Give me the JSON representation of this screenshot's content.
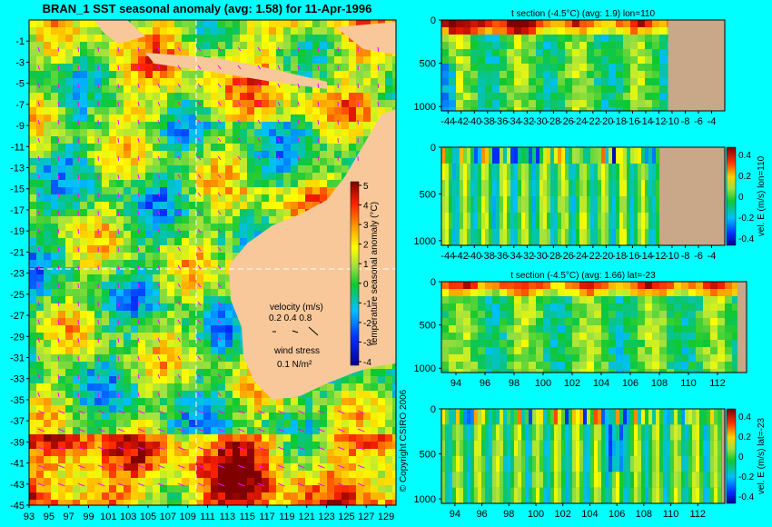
{
  "title": "BRAN_1  SST seasonal anomaly (avg: 1.58) for 11-Apr-1996",
  "copyright": "© Copyright CSIRO 2006",
  "colors": {
    "background": "#00ffff",
    "land": "#f8c89a",
    "seabed": "#c8a888",
    "guide": "#ffffff",
    "arrow": "#ff00ff"
  },
  "map": {
    "lat_ticks": [
      "-1",
      "-3",
      "-5",
      "-7",
      "-9",
      "-11",
      "-13",
      "-15",
      "-17",
      "-19",
      "-21",
      "-23",
      "-25",
      "-27",
      "-29",
      "-31",
      "-33",
      "-35",
      "-37",
      "-39",
      "-41",
      "-43",
      "-45"
    ],
    "lon_ticks": [
      "93",
      "95",
      "97",
      "99",
      "101",
      "103",
      "105",
      "107",
      "109",
      "111",
      "113",
      "115",
      "117",
      "119",
      "121",
      "123",
      "125",
      "127",
      "129"
    ],
    "section_lon": 110,
    "section_lat": -23
  },
  "legend": {
    "colorbar_label": "temperature seasonal anomaly (°C)",
    "colorbar_ticks": [
      "5",
      "4",
      "3",
      "2",
      "1",
      "0",
      "-1",
      "-2",
      "-3",
      "-4"
    ],
    "velocity_title": "velocity (m/s)",
    "velocity_scale": "0.2 0.4 0.8",
    "wind_title": "wind stress",
    "wind_scale": "0.1 N/m²"
  },
  "chart_data": [
    {
      "type": "heatmap",
      "title": "BRAN_1  SST seasonal anomaly (avg: 1.58) for 11-Apr-1996",
      "x": [
        93,
        95,
        97,
        99,
        101,
        103,
        105,
        107,
        109,
        111,
        113,
        115,
        117,
        119,
        121,
        123,
        125,
        127,
        129
      ],
      "y": [
        -1,
        -3,
        -5,
        -7,
        -9,
        -11,
        -13,
        -15,
        -17,
        -19,
        -21,
        -23,
        -25,
        -27,
        -29,
        -31,
        -33,
        -35,
        -37,
        -39,
        -41,
        -43,
        -45
      ],
      "xlim": [
        93,
        130
      ],
      "ylim": [
        -45,
        1
      ],
      "zlim": [
        -4,
        5
      ]
    },
    {
      "type": "heatmap",
      "title": "t section (-4.5°C) (avg: 1.9) lon=110",
      "x": [
        -44,
        -42,
        -40,
        -38,
        -36,
        -34,
        -32,
        -30,
        -28,
        -26,
        -24,
        -22,
        -20,
        -18,
        -16,
        -14,
        -12,
        -10,
        -8,
        -6,
        -4
      ],
      "y_ticks": [
        "0",
        "500",
        "1000"
      ],
      "xlim": [
        -45,
        -2
      ],
      "ylim": [
        1050,
        0
      ],
      "avg": 1.9
    },
    {
      "type": "heatmap",
      "title": "",
      "x": [
        -44,
        -42,
        -40,
        -38,
        -36,
        -34,
        -32,
        -30,
        -28,
        -26,
        -24,
        -22,
        -20,
        -18,
        -16,
        -14,
        -12,
        -10,
        -8,
        -6,
        -4
      ],
      "y_ticks": [
        "0",
        "500",
        "1000"
      ],
      "xlim": [
        -45,
        -2
      ],
      "ylim": [
        1050,
        0
      ],
      "colorbar_label": "vel. E (m/s) lon=110",
      "colorbar_ticks": [
        "0.4",
        "0.2",
        "0",
        "-0.2",
        "-0.4"
      ]
    },
    {
      "type": "heatmap",
      "title": "t section (-4.5°C) (avg: 1.66) lat=-23",
      "x": [
        94,
        96,
        98,
        100,
        102,
        104,
        106,
        108,
        110,
        112
      ],
      "y_ticks": [
        "0",
        "500",
        "1000"
      ],
      "xlim": [
        93,
        114
      ],
      "ylim": [
        1050,
        0
      ],
      "avg": 1.66
    },
    {
      "type": "heatmap",
      "title": "",
      "x": [
        94,
        96,
        98,
        100,
        102,
        104,
        106,
        108,
        110,
        112
      ],
      "y_ticks": [
        "0",
        "500",
        "1000"
      ],
      "xlim": [
        93,
        114
      ],
      "ylim": [
        1050,
        0
      ],
      "colorbar_label": "vel. E (m/s) lat=-23",
      "colorbar_ticks": [
        "0.4",
        "0.2",
        "0",
        "-0.2",
        "-0.4"
      ]
    }
  ]
}
